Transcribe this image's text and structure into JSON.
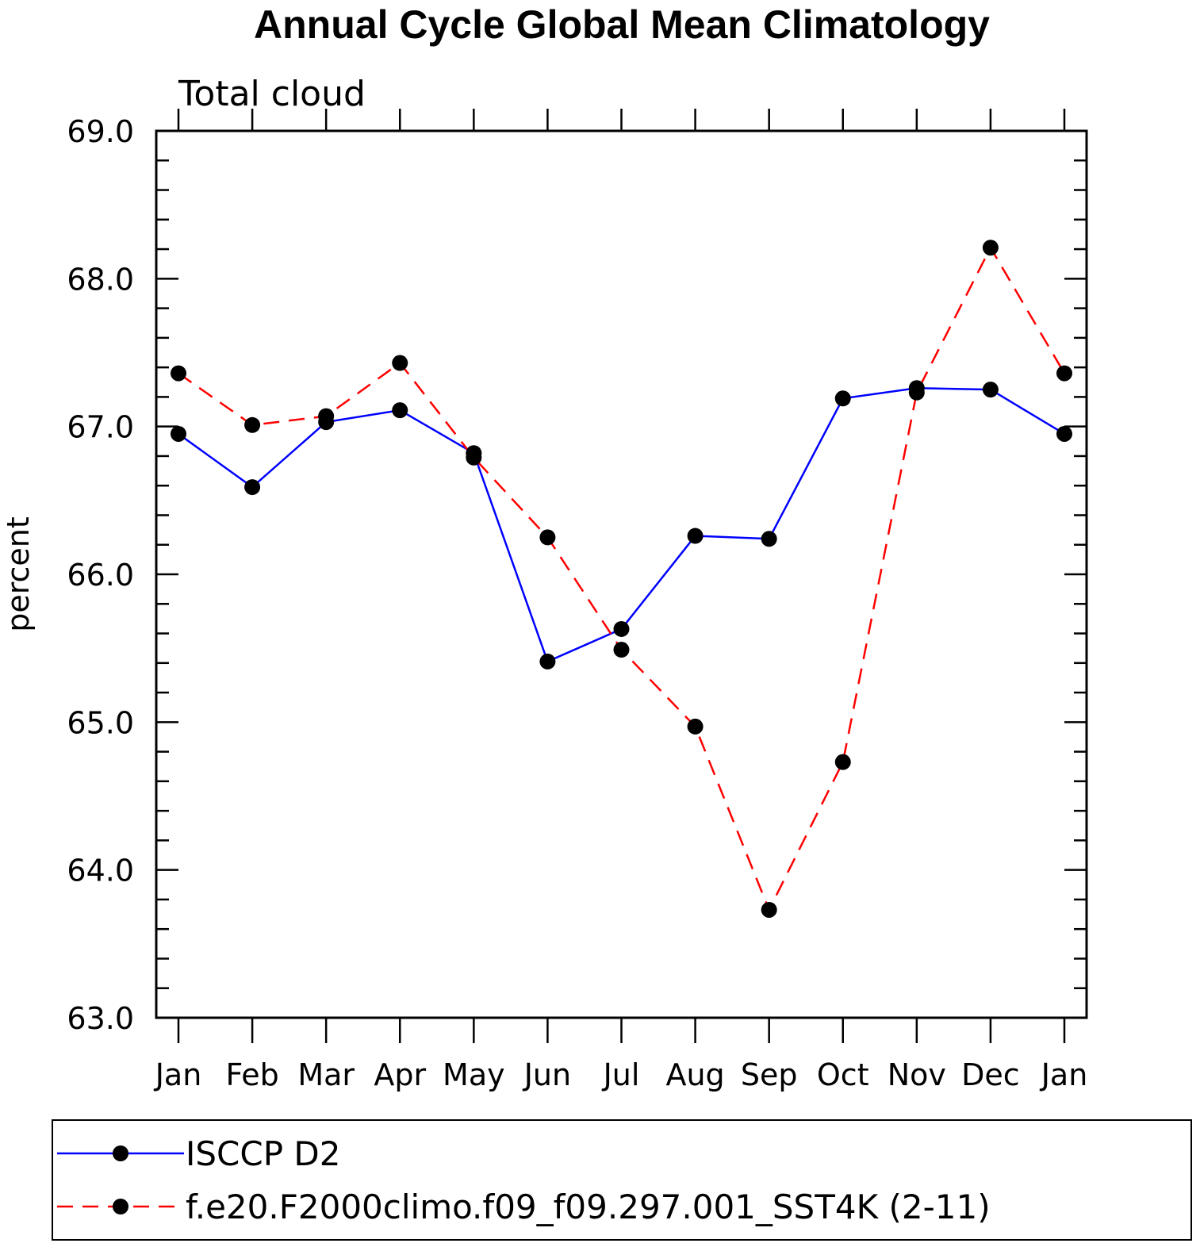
{
  "chart_data": {
    "type": "line",
    "title": "Annual Cycle Global Mean Climatology",
    "subtitle": "Total cloud",
    "ylabel": "percent",
    "xlabel": "",
    "categories": [
      "Jan",
      "Feb",
      "Mar",
      "Apr",
      "May",
      "Jun",
      "Jul",
      "Aug",
      "Sep",
      "Oct",
      "Nov",
      "Dec",
      "Jan"
    ],
    "ylim": [
      63.0,
      69.0
    ],
    "yticks": [
      "63.0",
      "64.0",
      "65.0",
      "66.0",
      "67.0",
      "68.0",
      "69.0"
    ],
    "legend_position": "bottom",
    "series": [
      {
        "name": "ISCCP D2",
        "color": "#0000ff",
        "dash": "solid",
        "values": [
          66.95,
          66.59,
          67.03,
          67.11,
          66.82,
          65.41,
          65.63,
          66.26,
          66.24,
          67.19,
          67.26,
          67.25,
          66.95
        ]
      },
      {
        "name": "f.e20.F2000climo.f09_f09.297.001_SST4K (2-11)",
        "color": "#ff0000",
        "dash": "dashed",
        "values": [
          67.36,
          67.01,
          67.07,
          67.43,
          66.79,
          66.25,
          65.49,
          64.97,
          63.73,
          64.73,
          67.23,
          68.21,
          67.36
        ]
      }
    ]
  }
}
